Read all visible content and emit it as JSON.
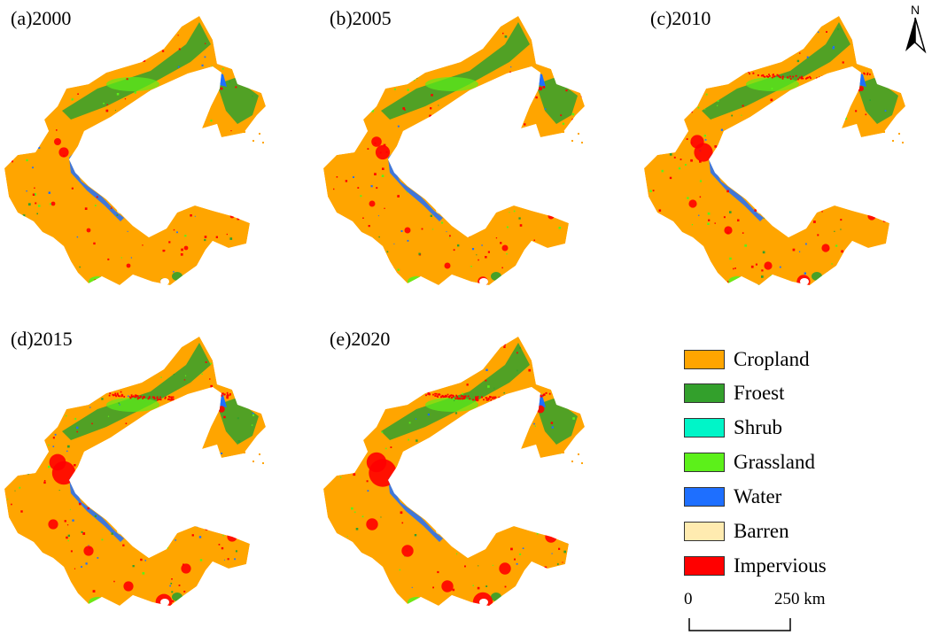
{
  "panels": [
    {
      "label": "(a)2000"
    },
    {
      "label": "(b)2005"
    },
    {
      "label": "(c)2010"
    },
    {
      "label": "(d)2015"
    },
    {
      "label": "(e)2020"
    }
  ],
  "legend": [
    {
      "label": "Cropland",
      "color": "#FFA500"
    },
    {
      "label": "Froest",
      "color": "#33A02C"
    },
    {
      "label": "Shrub",
      "color": "#00F5C8"
    },
    {
      "label": "Grassland",
      "color": "#5CF01A"
    },
    {
      "label": "Water",
      "color": "#1E6FFF"
    },
    {
      "label": "Barren",
      "color": "#FFEBB0"
    },
    {
      "label": "Impervious",
      "color": "#FF0000"
    }
  ],
  "scale": {
    "start": "0",
    "end": "250 km"
  },
  "north_label": "N"
}
